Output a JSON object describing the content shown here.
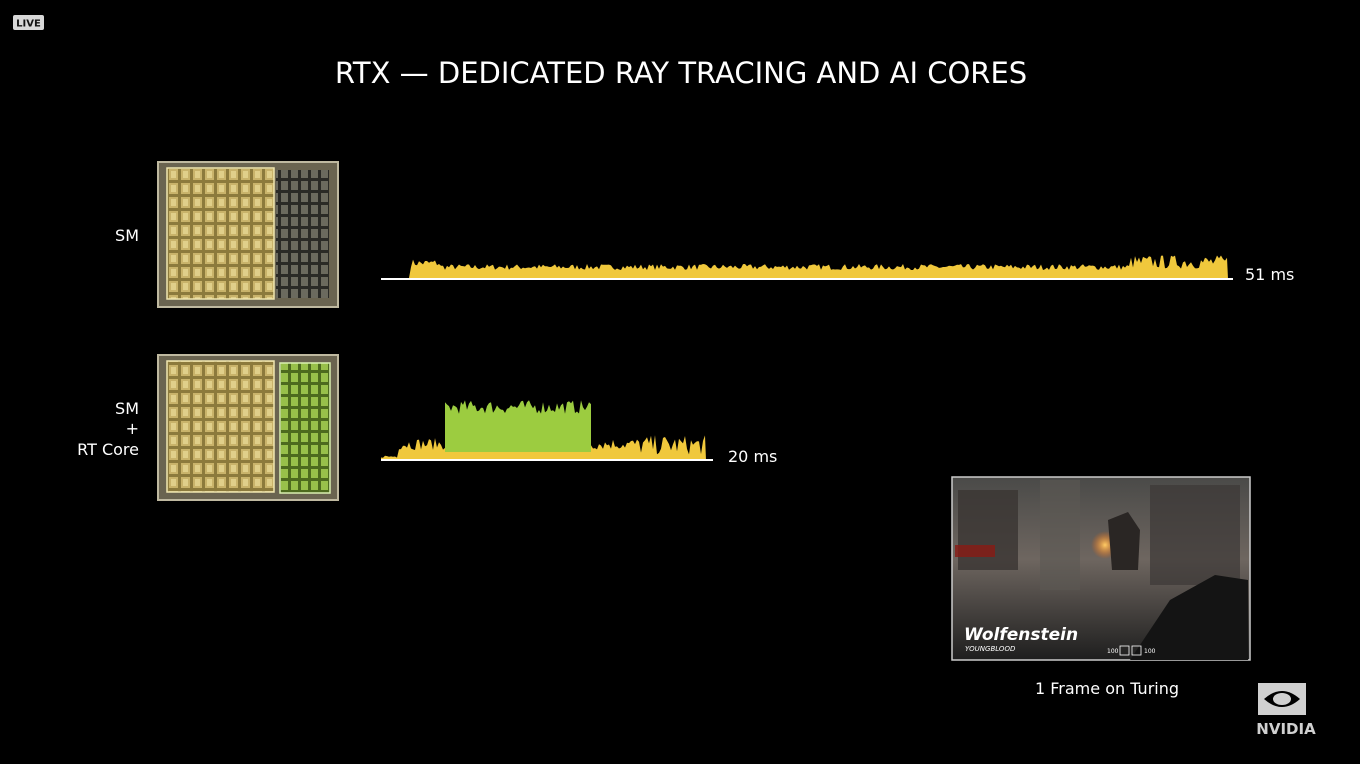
{
  "badge": "LIVE",
  "title": "RTX — DEDICATED RAY TRACING AND AI CORES",
  "rows": [
    {
      "label": [
        "SM"
      ],
      "time": "51 ms"
    },
    {
      "label": [
        "SM",
        "+",
        "RT Core"
      ],
      "time": "20 ms"
    }
  ],
  "game": {
    "logo": "Wolfenstein",
    "sublogo": "YOUNGBLOOD",
    "hud": [
      "100",
      "100"
    ],
    "caption": "1 Frame on Turing"
  },
  "brand": "NVIDIA"
}
